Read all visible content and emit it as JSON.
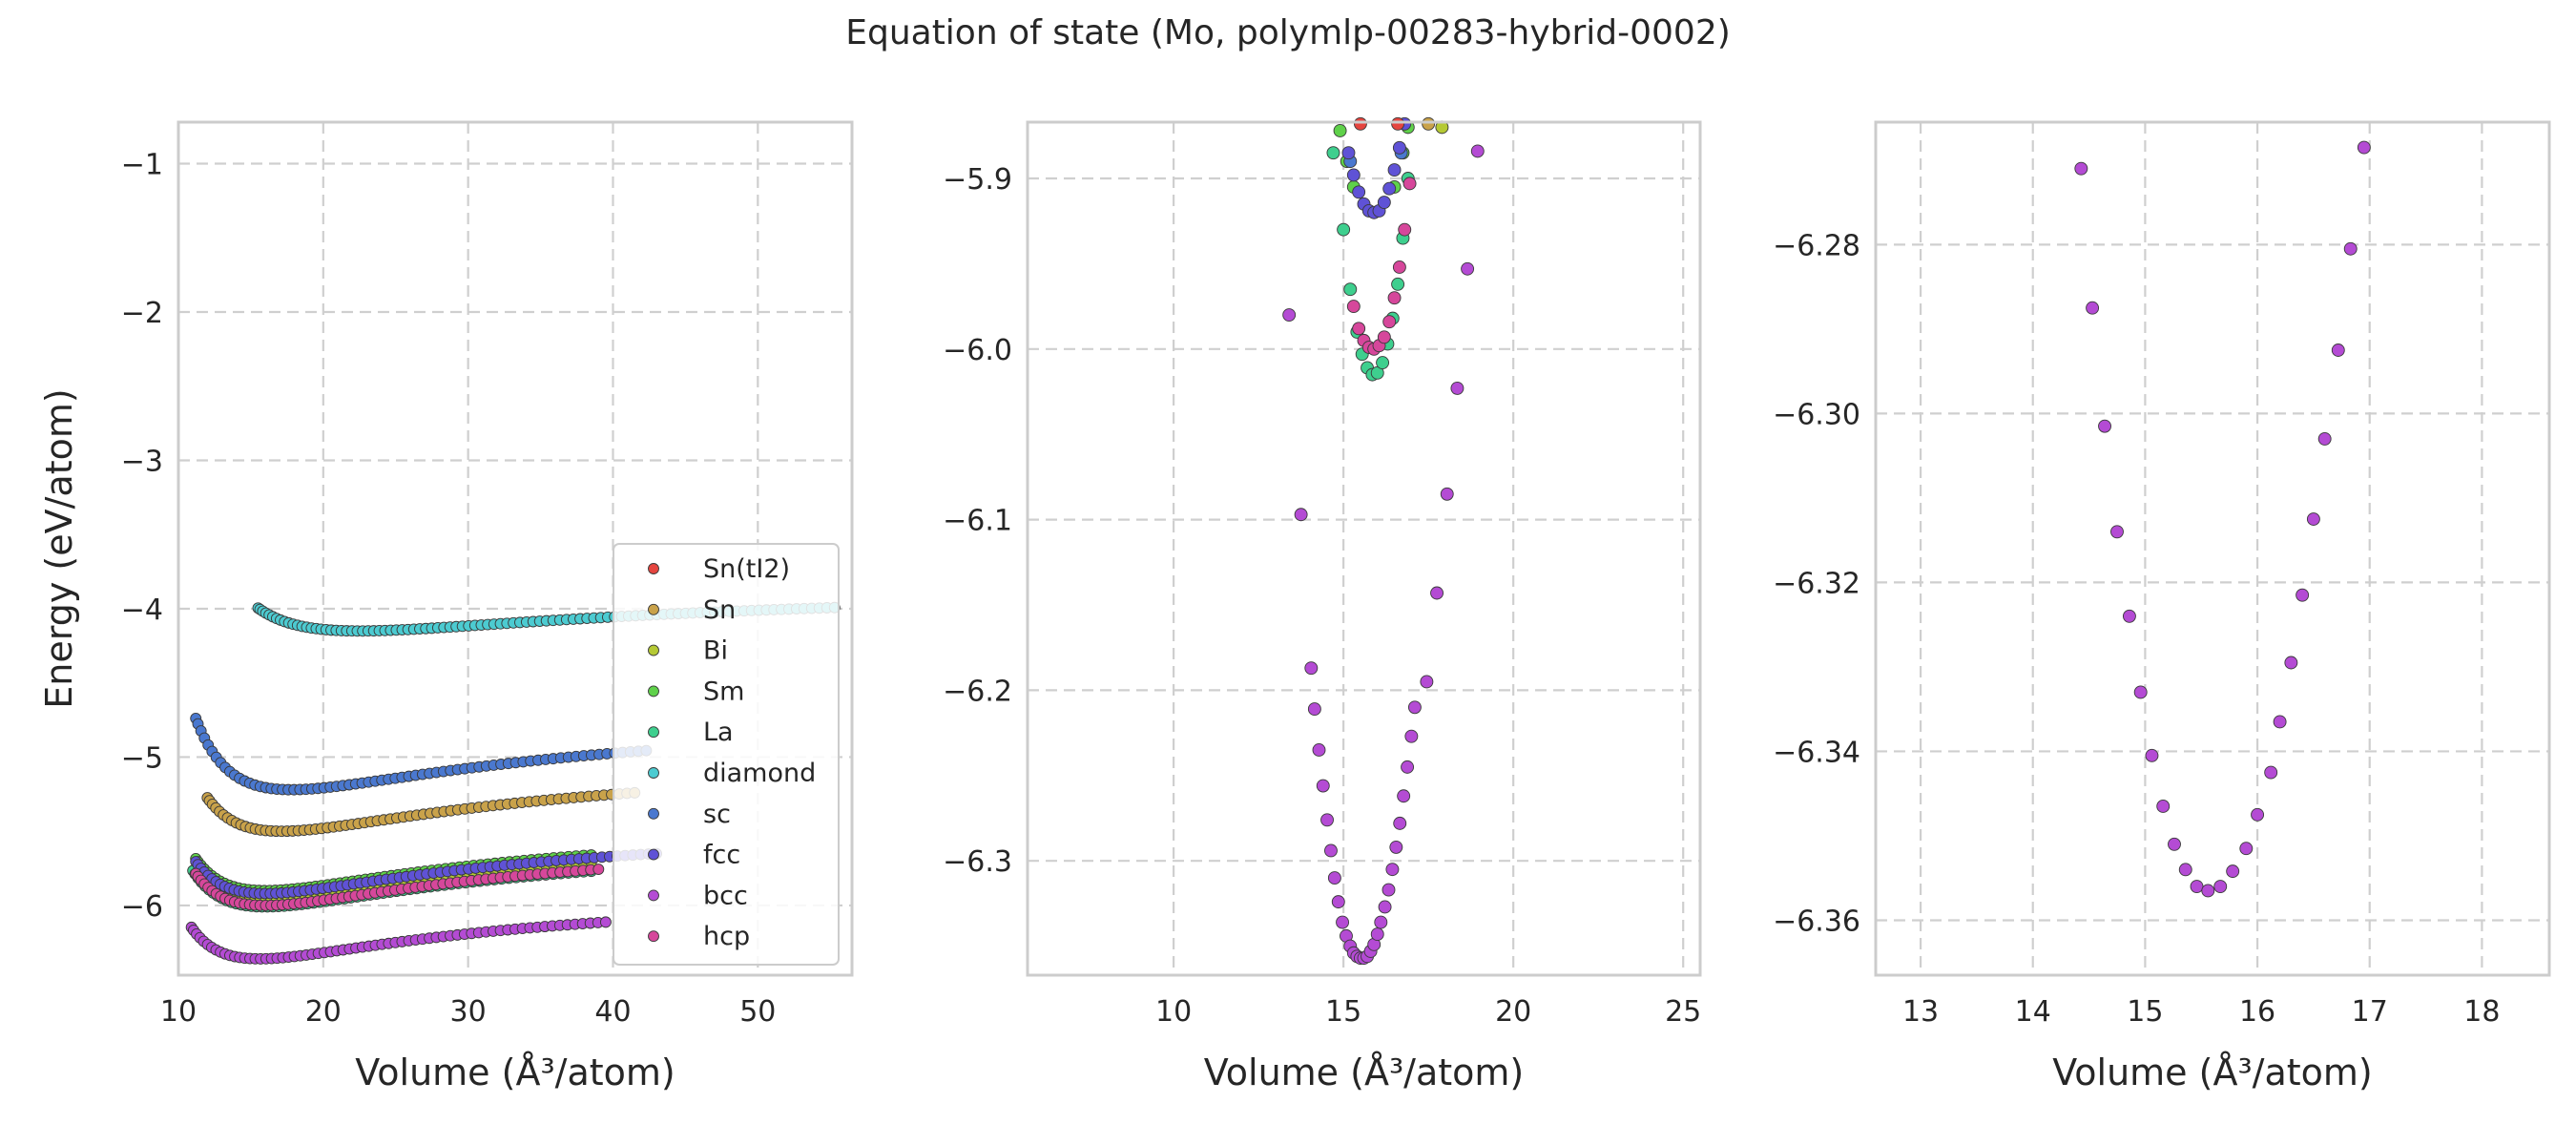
{
  "figure": {
    "title": "Equation of state (Mo, polymlp-00283-hybrid-0002)"
  },
  "chart_data": [
    {
      "type": "scatter",
      "xlabel": "Volume (Å³/atom)",
      "ylabel": "Energy (eV/atom)",
      "xlim": [
        10,
        56.5
      ],
      "ylim": [
        -6.47,
        -0.72
      ],
      "xticks": [
        10,
        20,
        30,
        40,
        50
      ],
      "yticks": [
        -1,
        -2,
        -3,
        -4,
        -5,
        -6
      ],
      "grid": true,
      "legend_position": "lower right",
      "series": [
        {
          "name": "Sn(tI2)",
          "color": "#e5453f",
          "model": {
            "v0": 15.9,
            "e0": -5.97,
            "a": 0.032,
            "vmin": 11.4,
            "vmax": 37.5,
            "n": 64
          }
        },
        {
          "name": "Sn",
          "color": "#c9a24a",
          "model": {
            "v0": 17.1,
            "e0": -5.5,
            "a": 0.032,
            "vmin": 12.0,
            "vmax": 41.5,
            "n": 70
          }
        },
        {
          "name": "Bi",
          "color": "#b5c934",
          "model": {
            "v0": 16.0,
            "e0": -5.95,
            "a": 0.032,
            "vmin": 11.3,
            "vmax": 38.5,
            "n": 66
          }
        },
        {
          "name": "Sm",
          "color": "#5fd14a",
          "model": {
            "v0": 16.0,
            "e0": -5.9,
            "a": 0.032,
            "vmin": 11.2,
            "vmax": 38.5,
            "n": 66
          }
        },
        {
          "name": "La",
          "color": "#3ecf8e",
          "model": {
            "v0": 16.0,
            "e0": -6.01,
            "a": 0.032,
            "vmin": 11.0,
            "vmax": 38.5,
            "n": 66
          }
        },
        {
          "name": "diamond",
          "color": "#4ccbd1",
          "model": {
            "v0": 22.5,
            "e0": -4.15,
            "a": 0.0146,
            "vmin": 15.5,
            "vmax": 55.3,
            "n": 95
          }
        },
        {
          "name": "sc",
          "color": "#4a78cf",
          "model": {
            "v0": 17.8,
            "e0": -5.22,
            "a": 0.032,
            "vmin": 11.2,
            "vmax": 42.3,
            "n": 72
          }
        },
        {
          "name": "fcc",
          "color": "#5f52d6",
          "model": {
            "v0": 16.0,
            "e0": -5.92,
            "a": 0.032,
            "vmin": 11.2,
            "vmax": 43.0,
            "n": 74
          }
        },
        {
          "name": "bcc",
          "color": "#b44bd4",
          "model": {
            "v0": 15.6,
            "e0": -6.36,
            "a": 0.032,
            "vmin": 10.9,
            "vmax": 39.5,
            "n": 68
          }
        },
        {
          "name": "hcp",
          "color": "#d6479b",
          "model": {
            "v0": 16.0,
            "e0": -6.0,
            "a": 0.032,
            "vmin": 11.2,
            "vmax": 39.0,
            "n": 66
          }
        }
      ]
    },
    {
      "type": "scatter",
      "xlabel": "Volume (Å³/atom)",
      "ylabel": "",
      "xlim": [
        5.7,
        25.5
      ],
      "ylim": [
        -6.367,
        -5.867
      ],
      "xticks": [
        10,
        15,
        20,
        25
      ],
      "yticks": [
        -5.9,
        -6.0,
        -6.1,
        -6.2,
        -6.3
      ],
      "grid": true,
      "series": [
        {
          "name": "La",
          "color": "#3ecf8e",
          "points": [
            [
              14.7,
              -5.885
            ],
            [
              15.0,
              -5.93
            ],
            [
              15.2,
              -5.965
            ],
            [
              15.4,
              -5.99
            ],
            [
              15.55,
              -6.003
            ],
            [
              15.7,
              -6.011
            ],
            [
              15.85,
              -6.015
            ],
            [
              16.0,
              -6.014
            ],
            [
              16.15,
              -6.008
            ],
            [
              16.3,
              -5.997
            ],
            [
              16.45,
              -5.982
            ],
            [
              16.6,
              -5.962
            ],
            [
              16.75,
              -5.935
            ],
            [
              16.9,
              -5.9
            ]
          ]
        },
        {
          "name": "Sm",
          "color": "#5fd14a",
          "points": [
            [
              14.9,
              -5.872
            ],
            [
              15.1,
              -5.89
            ],
            [
              15.3,
              -5.905
            ],
            [
              16.5,
              -5.905
            ],
            [
              16.75,
              -5.885
            ],
            [
              16.9,
              -5.87
            ]
          ]
        },
        {
          "name": "hcp",
          "color": "#d6479b",
          "points": [
            [
              15.3,
              -5.975
            ],
            [
              15.45,
              -5.988
            ],
            [
              15.6,
              -5.995
            ],
            [
              15.75,
              -5.999
            ],
            [
              15.9,
              -6.0
            ],
            [
              16.05,
              -5.998
            ],
            [
              16.2,
              -5.993
            ],
            [
              16.35,
              -5.984
            ],
            [
              16.5,
              -5.97
            ],
            [
              16.65,
              -5.952
            ],
            [
              16.8,
              -5.93
            ],
            [
              16.95,
              -5.903
            ]
          ]
        },
        {
          "name": "sc",
          "color": "#4a78cf",
          "points": [
            [
              15.2,
              -5.89
            ],
            [
              16.7,
              -5.885
            ]
          ]
        },
        {
          "name": "fcc",
          "color": "#5f52d6",
          "points": [
            [
              15.15,
              -5.885
            ],
            [
              15.3,
              -5.898
            ],
            [
              15.45,
              -5.908
            ],
            [
              15.6,
              -5.915
            ],
            [
              15.75,
              -5.919
            ],
            [
              15.9,
              -5.92
            ],
            [
              16.05,
              -5.919
            ],
            [
              16.2,
              -5.914
            ],
            [
              16.35,
              -5.906
            ],
            [
              16.5,
              -5.895
            ],
            [
              16.65,
              -5.882
            ],
            [
              16.8,
              -5.868
            ]
          ]
        },
        {
          "name": "Sn(tI2)",
          "color": "#e5453f",
          "points": [
            [
              15.5,
              -5.868
            ],
            [
              16.6,
              -5.868
            ]
          ]
        },
        {
          "name": "Sn",
          "color": "#c9a24a",
          "points": [
            [
              17.5,
              -5.868
            ]
          ]
        },
        {
          "name": "Bi",
          "color": "#b5c934",
          "points": [
            [
              17.9,
              -5.87
            ]
          ]
        },
        {
          "name": "bcc",
          "color": "#b44bd4",
          "points": [
            [
              13.4,
              -5.98
            ],
            [
              13.75,
              -6.097
            ],
            [
              14.05,
              -6.187
            ],
            [
              14.15,
              -6.211
            ],
            [
              14.28,
              -6.235
            ],
            [
              14.4,
              -6.256
            ],
            [
              14.52,
              -6.276
            ],
            [
              14.63,
              -6.294
            ],
            [
              14.74,
              -6.31
            ],
            [
              14.85,
              -6.324
            ],
            [
              14.97,
              -6.336
            ],
            [
              15.08,
              -6.344
            ],
            [
              15.2,
              -6.35
            ],
            [
              15.3,
              -6.354
            ],
            [
              15.4,
              -6.356
            ],
            [
              15.5,
              -6.357
            ],
            [
              15.6,
              -6.357
            ],
            [
              15.7,
              -6.356
            ],
            [
              15.8,
              -6.353
            ],
            [
              15.9,
              -6.349
            ],
            [
              16.0,
              -6.343
            ],
            [
              16.1,
              -6.336
            ],
            [
              16.22,
              -6.327
            ],
            [
              16.33,
              -6.317
            ],
            [
              16.44,
              -6.305
            ],
            [
              16.55,
              -6.292
            ],
            [
              16.66,
              -6.278
            ],
            [
              16.77,
              -6.262
            ],
            [
              16.88,
              -6.245
            ],
            [
              17.0,
              -6.227
            ],
            [
              17.1,
              -6.21
            ],
            [
              17.45,
              -6.195
            ],
            [
              17.75,
              -6.143
            ],
            [
              18.05,
              -6.085
            ],
            [
              18.35,
              -6.023
            ],
            [
              18.65,
              -5.953
            ],
            [
              18.95,
              -5.884
            ]
          ]
        }
      ]
    },
    {
      "type": "scatter",
      "xlabel": "Volume (Å³/atom)",
      "ylabel": "",
      "xlim": [
        12.6,
        18.6
      ],
      "ylim": [
        -6.3665,
        -6.2655
      ],
      "xticks": [
        13,
        14,
        15,
        16,
        17,
        18
      ],
      "yticks": [
        -6.28,
        -6.3,
        -6.32,
        -6.34,
        -6.36
      ],
      "grid": true,
      "series": [
        {
          "name": "bcc",
          "color": "#b44bd4",
          "points": [
            [
              14.43,
              -6.271
            ],
            [
              14.53,
              -6.2875
            ],
            [
              14.64,
              -6.3015
            ],
            [
              14.75,
              -6.314
            ],
            [
              14.86,
              -6.324
            ],
            [
              14.96,
              -6.333
            ],
            [
              15.06,
              -6.3405
            ],
            [
              15.16,
              -6.3465
            ],
            [
              15.26,
              -6.351
            ],
            [
              15.36,
              -6.354
            ],
            [
              15.46,
              -6.356
            ],
            [
              15.56,
              -6.3565
            ],
            [
              15.67,
              -6.356
            ],
            [
              15.78,
              -6.3542
            ],
            [
              15.9,
              -6.3515
            ],
            [
              16.0,
              -6.3475
            ],
            [
              16.12,
              -6.3425
            ],
            [
              16.2,
              -6.3365
            ],
            [
              16.3,
              -6.3295
            ],
            [
              16.4,
              -6.3215
            ],
            [
              16.5,
              -6.3125
            ],
            [
              16.6,
              -6.303
            ],
            [
              16.72,
              -6.2925
            ],
            [
              16.83,
              -6.2805
            ],
            [
              16.95,
              -6.2685
            ]
          ]
        }
      ]
    }
  ]
}
